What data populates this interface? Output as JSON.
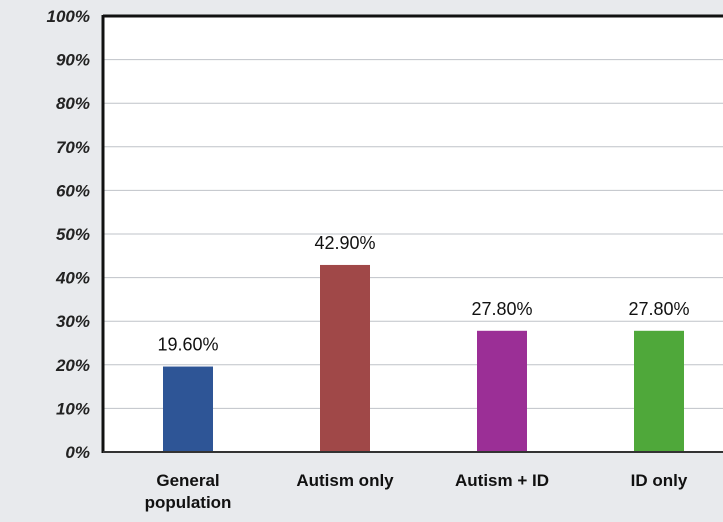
{
  "chart_data": {
    "type": "bar",
    "categories": [
      [
        "General",
        "population"
      ],
      [
        "Autism only"
      ],
      [
        "Autism + ID"
      ],
      [
        "ID only"
      ]
    ],
    "values": [
      19.6,
      42.9,
      27.8,
      27.8
    ],
    "data_labels": [
      "19.60%",
      "42.90%",
      "27.80%",
      "27.80%"
    ],
    "colors": [
      "#2e5596",
      "#a04848",
      "#9b2f96",
      "#4fa83a"
    ],
    "ylim": [
      0,
      100
    ],
    "y_ticks": [
      "0%",
      "10%",
      "20%",
      "30%",
      "40%",
      "50%",
      "60%",
      "70%",
      "80%",
      "90%",
      "100%"
    ],
    "y_tick_values": [
      0,
      10,
      20,
      30,
      40,
      50,
      60,
      70,
      80,
      90,
      100
    ],
    "grid": true,
    "legend": "none",
    "title": "",
    "xlabel": "",
    "ylabel": ""
  }
}
